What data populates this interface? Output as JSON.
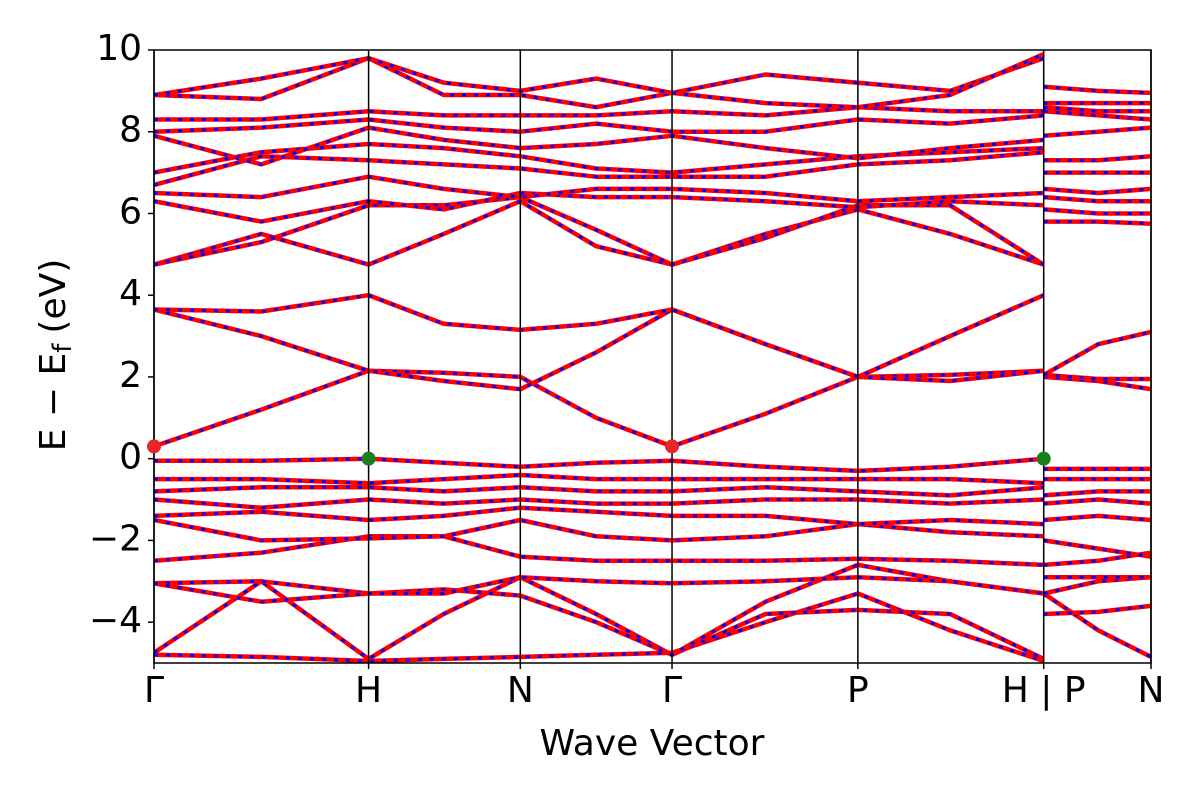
{
  "chart_data": {
    "type": "band-structure",
    "xlabel": "Wave Vector",
    "ylabel": {
      "main": "E − E",
      "sub": "f",
      "unit": "(eV)"
    },
    "xlim": [
      0,
      4.646
    ],
    "ylim": [
      -5,
      10
    ],
    "xticks": [
      {
        "value": 0,
        "label": "Γ"
      },
      {
        "value": 1,
        "label": "H"
      },
      {
        "value": 1.707,
        "label": "N"
      },
      {
        "value": 2.414,
        "label": "Γ"
      },
      {
        "value": 3.28,
        "label": "P"
      },
      {
        "value": 4.146,
        "label": "H | P"
      },
      {
        "value": 4.646,
        "label": "N"
      }
    ],
    "yticks": [
      {
        "value": -4,
        "label": "−4"
      },
      {
        "value": -2,
        "label": "−2"
      },
      0,
      2,
      4,
      6,
      8,
      10
    ],
    "color": "#ff0000",
    "dash_color": "#0000ff",
    "x": [
      0,
      0.5,
      1,
      1.35,
      1.707,
      2.06,
      2.414,
      2.85,
      3.28,
      3.71,
      4.146,
      4.146,
      4.146,
      4.4,
      4.646
    ],
    "series": [
      {
        "values": [
          -4.8,
          -4.85,
          -4.95,
          -4.9,
          -4.85,
          -4.8,
          -4.75,
          -4.0,
          -3.3,
          -4.2,
          -4.95,
          null,
          -3.3,
          -4.2,
          -4.85
        ]
      },
      {
        "values": [
          -4.75,
          -3.0,
          -4.9,
          -3.8,
          -2.9,
          -3.8,
          -4.8,
          -3.8,
          -3.7,
          -3.8,
          -4.9,
          null,
          -3.8,
          -3.75,
          -3.6
        ]
      },
      {
        "values": [
          -3.05,
          -3.0,
          -3.3,
          -3.2,
          -3.35,
          -4.0,
          -4.8,
          -3.5,
          -2.6,
          -3.0,
          -3.3,
          null,
          -3.3,
          -3.0,
          -2.9
        ]
      },
      {
        "values": [
          -3.05,
          -3.5,
          -3.3,
          -3.3,
          -2.9,
          -3.0,
          -3.05,
          -3.0,
          -2.9,
          -3.0,
          -3.3,
          null,
          -2.9,
          -2.9,
          -2.9
        ]
      },
      {
        "values": [
          -2.5,
          -2.3,
          -1.9,
          -1.9,
          -2.4,
          -2.5,
          -2.5,
          -2.5,
          -2.45,
          -2.5,
          -2.6,
          null,
          -2.6,
          -2.5,
          -2.3
        ]
      },
      {
        "values": [
          -1.5,
          -2.0,
          -1.95,
          -1.9,
          -1.5,
          -1.9,
          -2.0,
          -1.9,
          -1.6,
          -1.8,
          -1.9,
          null,
          -2.0,
          -2.2,
          -2.4
        ]
      },
      {
        "values": [
          -1.4,
          -1.3,
          -1.5,
          -1.4,
          -1.2,
          -1.3,
          -1.4,
          -1.4,
          -1.6,
          -1.5,
          -1.6,
          null,
          -1.5,
          -1.4,
          -1.5
        ]
      },
      {
        "values": [
          -1.0,
          -1.2,
          -1.0,
          -1.1,
          -1.0,
          -1.1,
          -1.1,
          -1.0,
          -1.0,
          -1.1,
          -1.0,
          null,
          -1.1,
          -1.0,
          -1.1
        ]
      },
      {
        "values": [
          -0.8,
          -0.7,
          -0.7,
          -0.8,
          -0.7,
          -0.8,
          -0.8,
          -0.7,
          -0.8,
          -0.9,
          -0.7,
          null,
          -0.9,
          -0.8,
          -0.8
        ]
      },
      {
        "values": [
          -0.5,
          -0.5,
          -0.6,
          -0.5,
          -0.4,
          -0.5,
          -0.5,
          -0.5,
          -0.5,
          -0.5,
          -0.6,
          null,
          -0.5,
          -0.5,
          -0.5
        ]
      },
      {
        "values": [
          -0.05,
          -0.05,
          0,
          -0.1,
          -0.2,
          -0.1,
          -0.05,
          -0.2,
          -0.3,
          -0.2,
          0,
          null,
          -0.25,
          -0.25,
          -0.25
        ]
      },
      {
        "values": [
          0.3,
          1.2,
          2.15,
          2.1,
          2.0,
          1.0,
          0.3,
          1.1,
          2.0,
          2.05,
          2.15,
          null,
          2.0,
          1.9,
          1.7
        ]
      },
      {
        "values": [
          3.65,
          3.0,
          2.15,
          1.9,
          1.7,
          2.6,
          3.65,
          2.8,
          2.0,
          1.9,
          2.15,
          null,
          2.05,
          1.95,
          1.95
        ]
      },
      {
        "values": [
          3.65,
          3.6,
          4.0,
          3.3,
          3.15,
          3.3,
          3.65,
          2.8,
          2.0,
          3.0,
          4.0,
          null,
          2.05,
          2.8,
          3.1
        ]
      },
      {
        "values": [
          4.75,
          5.5,
          4.75,
          5.5,
          6.3,
          5.2,
          4.75,
          5.5,
          6.1,
          5.5,
          4.75,
          null,
          5.8,
          5.8,
          5.75
        ]
      },
      {
        "values": [
          4.75,
          5.3,
          6.2,
          6.2,
          6.4,
          5.6,
          4.75,
          5.4,
          6.2,
          6.2,
          4.75,
          null,
          6.1,
          6.0,
          6.0
        ]
      },
      {
        "values": [
          6.3,
          5.8,
          6.3,
          6.1,
          6.5,
          6.4,
          6.4,
          6.3,
          6.15,
          6.3,
          6.2,
          null,
          6.4,
          6.3,
          6.3
        ]
      },
      {
        "values": [
          6.5,
          6.4,
          6.9,
          6.6,
          6.4,
          6.6,
          6.6,
          6.5,
          6.3,
          6.4,
          6.5,
          null,
          6.6,
          6.5,
          6.6
        ]
      },
      {
        "values": [
          6.7,
          7.4,
          7.3,
          7.2,
          7.1,
          6.9,
          6.9,
          6.9,
          7.2,
          7.3,
          7.5,
          null,
          7.0,
          7.0,
          7.0
        ]
      },
      {
        "values": [
          7.0,
          7.5,
          7.7,
          7.6,
          7.4,
          7.1,
          7.0,
          7.2,
          7.4,
          7.5,
          7.6,
          null,
          7.3,
          7.3,
          7.4
        ]
      },
      {
        "values": [
          7.9,
          7.2,
          8.1,
          7.8,
          7.6,
          7.7,
          7.9,
          7.6,
          7.35,
          7.6,
          7.8,
          null,
          7.9,
          8.0,
          8.1
        ]
      },
      {
        "values": [
          8.0,
          8.1,
          8.3,
          8.1,
          8.0,
          8.2,
          8.0,
          8.0,
          8.3,
          8.2,
          8.4,
          null,
          8.5,
          8.4,
          8.3
        ]
      },
      {
        "values": [
          8.3,
          8.3,
          8.5,
          8.4,
          8.4,
          8.4,
          8.5,
          8.4,
          8.6,
          8.5,
          8.5,
          null,
          8.6,
          8.5,
          8.5
        ]
      },
      {
        "values": [
          8.9,
          8.8,
          9.8,
          8.9,
          8.9,
          8.6,
          8.95,
          9.4,
          9.2,
          9.0,
          9.8,
          null,
          8.7,
          8.7,
          8.7
        ]
      },
      {
        "values": [
          8.9,
          9.3,
          9.8,
          9.2,
          9.0,
          9.3,
          8.95,
          8.7,
          8.6,
          8.9,
          9.9,
          null,
          9.1,
          9.0,
          8.95
        ]
      }
    ],
    "points": [
      {
        "x": 0,
        "y": 0.3,
        "color": "#e8262a"
      },
      {
        "x": 2.414,
        "y": 0.3,
        "color": "#e8262a"
      },
      {
        "x": 1,
        "y": 0,
        "color": "#1a7f1a"
      },
      {
        "x": 4.146,
        "y": 0,
        "color": "#1a7f1a"
      }
    ]
  }
}
